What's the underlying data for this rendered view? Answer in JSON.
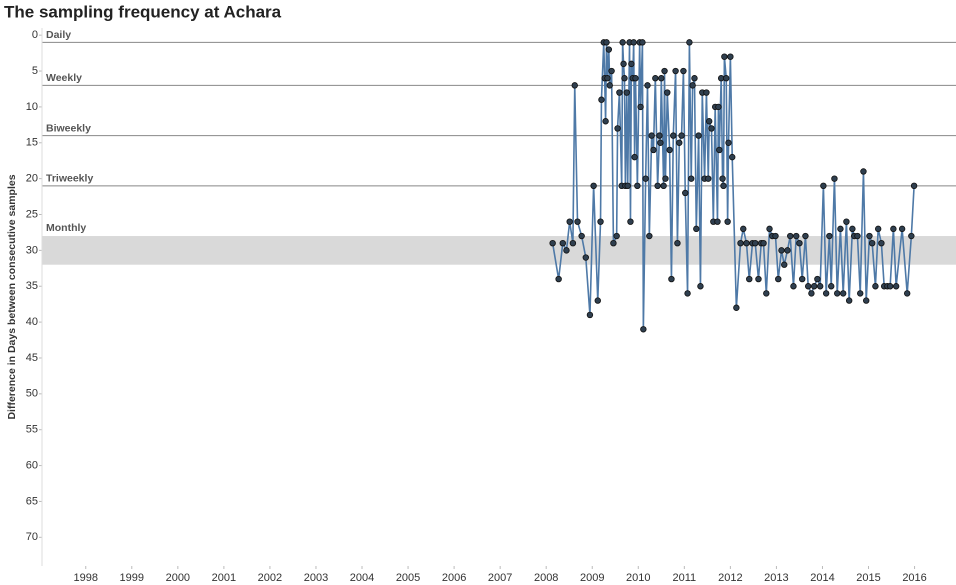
{
  "chart_data": {
    "type": "line",
    "title": "The sampling frequency at Achara",
    "y_label": "Difference in Days between consecutive samples",
    "y_reversed": true,
    "xlim": [
      1997.05,
      2016.9
    ],
    "xticks": [
      1998,
      1999,
      2000,
      2001,
      2002,
      2003,
      2004,
      2005,
      2006,
      2007,
      2008,
      2009,
      2010,
      2011,
      2012,
      2013,
      2014,
      2015,
      2016
    ],
    "ylim": [
      -1,
      74
    ],
    "yticks": [
      0,
      5,
      10,
      15,
      20,
      25,
      30,
      35,
      40,
      45,
      50,
      55,
      60,
      65,
      70
    ],
    "reference_lines": [
      {
        "label": "Daily",
        "value": 1
      },
      {
        "label": "Weekly",
        "value": 7
      },
      {
        "label": "Biweekly",
        "value": 14
      },
      {
        "label": "Triweekly",
        "value": 21
      }
    ],
    "reference_band": {
      "label": "Monthly",
      "from": 28,
      "to": 32,
      "color": "#d9d9d9"
    },
    "x": [
      2008.14,
      2008.27,
      2008.36,
      2008.44,
      2008.51,
      2008.58,
      2008.62,
      2008.68,
      2008.77,
      2008.86,
      2008.95,
      2009.03,
      2009.12,
      2009.18,
      2009.2,
      2009.25,
      2009.27,
      2009.29,
      2009.31,
      2009.33,
      2009.36,
      2009.38,
      2009.42,
      2009.46,
      2009.53,
      2009.55,
      2009.59,
      2009.64,
      2009.66,
      2009.68,
      2009.7,
      2009.72,
      2009.75,
      2009.77,
      2009.81,
      2009.83,
      2009.85,
      2009.88,
      2009.9,
      2009.92,
      2009.94,
      2009.98,
      2010.03,
      2010.05,
      2010.09,
      2010.11,
      2010.16,
      2010.2,
      2010.24,
      2010.29,
      2010.33,
      2010.37,
      2010.42,
      2010.46,
      2010.48,
      2010.5,
      2010.55,
      2010.57,
      2010.59,
      2010.63,
      2010.68,
      2010.72,
      2010.76,
      2010.81,
      2010.85,
      2010.89,
      2010.94,
      2010.98,
      2011.02,
      2011.07,
      2011.11,
      2011.15,
      2011.18,
      2011.22,
      2011.26,
      2011.31,
      2011.35,
      2011.39,
      2011.44,
      2011.48,
      2011.52,
      2011.54,
      2011.59,
      2011.63,
      2011.67,
      2011.72,
      2011.74,
      2011.76,
      2011.8,
      2011.83,
      2011.85,
      2011.87,
      2011.91,
      2011.94,
      2011.96,
      2012.0,
      2012.04,
      2012.13,
      2012.22,
      2012.28,
      2012.35,
      2012.41,
      2012.48,
      2012.54,
      2012.61,
      2012.67,
      2012.72,
      2012.78,
      2012.85,
      2012.91,
      2012.98,
      2013.04,
      2013.11,
      2013.17,
      2013.24,
      2013.3,
      2013.37,
      2013.43,
      2013.5,
      2013.56,
      2013.63,
      2013.69,
      2013.76,
      2013.82,
      2013.89,
      2013.95,
      2014.02,
      2014.08,
      2014.15,
      2014.19,
      2014.26,
      2014.32,
      2014.39,
      2014.45,
      2014.52,
      2014.58,
      2014.65,
      2014.69,
      2014.76,
      2014.82,
      2014.89,
      2014.95,
      2015.02,
      2015.08,
      2015.15,
      2015.21,
      2015.28,
      2015.34,
      2015.41,
      2015.47,
      2015.54,
      2015.6,
      2015.73,
      2015.84,
      2015.93,
      2015.99
    ],
    "series": [
      {
        "color": "#4e79a7",
        "marker_color": "#2f3f4f",
        "values": [
          29,
          34,
          29,
          30,
          26,
          29,
          7,
          26,
          28,
          31,
          39,
          21,
          37,
          26,
          9,
          1,
          6,
          12,
          1,
          6,
          2,
          7,
          5,
          29,
          28,
          13,
          8,
          21,
          1,
          4,
          6,
          21,
          8,
          21,
          1,
          26,
          4,
          6,
          1,
          17,
          6,
          21,
          1,
          10,
          1,
          41,
          20,
          7,
          28,
          14,
          16,
          6,
          21,
          14,
          15,
          6,
          21,
          5,
          20,
          8,
          16,
          34,
          14,
          5,
          29,
          15,
          14,
          5,
          22,
          36,
          1,
          20,
          7,
          6,
          27,
          14,
          35,
          8,
          20,
          8,
          20,
          12,
          13,
          26,
          10,
          26,
          10,
          16,
          6,
          20,
          21,
          3,
          6,
          26,
          15,
          3,
          17,
          38,
          29,
          27,
          29,
          34,
          29,
          29,
          34,
          29,
          29,
          36,
          27,
          28,
          28,
          34,
          30,
          32,
          30,
          28,
          35,
          28,
          29,
          34,
          28,
          35,
          36,
          35,
          34,
          35,
          21,
          36,
          28,
          35,
          20,
          36,
          27,
          36,
          26,
          37,
          27,
          28,
          28,
          36,
          19,
          37,
          28,
          29,
          35,
          27,
          29,
          35,
          35,
          35,
          27,
          35,
          27,
          36,
          28,
          21
        ]
      }
    ]
  }
}
